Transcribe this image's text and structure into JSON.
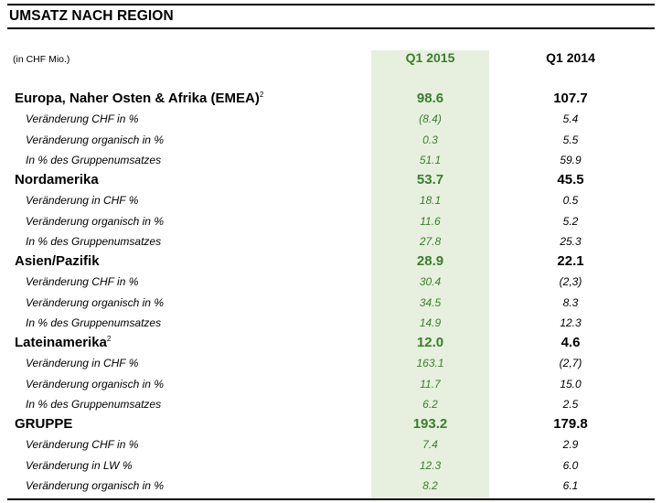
{
  "title": "UMSATZ NACH REGION",
  "unit_note": "(in CHF Mio.)",
  "columns": [
    "Q1 2015",
    "Q1 2014"
  ],
  "colors": {
    "highlight_column_bg": "#e7f0df",
    "highlight_text": "#3a7e2c"
  },
  "rows": [
    {
      "type": "main",
      "label": "Europa, Naher Osten & Afrika (EMEA)",
      "sup": "2",
      "q1_2015": "98.6",
      "q1_2014": "107.7"
    },
    {
      "type": "sub",
      "label": "Veränderung CHF in %",
      "q1_2015": "(8.4)",
      "q1_2014": "5.4"
    },
    {
      "type": "sub",
      "label": "Veränderung organisch in %",
      "q1_2015": "0.3",
      "q1_2014": "5.5"
    },
    {
      "type": "sub",
      "label": "In % des Gruppenumsatzes",
      "q1_2015": "51.1",
      "q1_2014": "59.9"
    },
    {
      "type": "main",
      "label": "Nordamerika",
      "sup": "",
      "q1_2015": "53.7",
      "q1_2014": "45.5"
    },
    {
      "type": "sub",
      "label": "Veränderung in CHF %",
      "q1_2015": "18.1",
      "q1_2014": "0.5"
    },
    {
      "type": "sub",
      "label": "Veränderung organisch in %",
      "q1_2015": "11.6",
      "q1_2014": "5.2"
    },
    {
      "type": "sub",
      "label": "In % des Gruppenumsatzes",
      "q1_2015": "27.8",
      "q1_2014": "25.3"
    },
    {
      "type": "main",
      "label": "Asien/Pazifik",
      "sup": "",
      "q1_2015": "28.9",
      "q1_2014": "22.1"
    },
    {
      "type": "sub",
      "label": "Veränderung CHF in %",
      "q1_2015": "30.4",
      "q1_2014": "(2,3)"
    },
    {
      "type": "sub",
      "label": "Veränderung organisch in %",
      "q1_2015": "34.5",
      "q1_2014": "8.3"
    },
    {
      "type": "sub",
      "label": "In % des Gruppenumsatzes",
      "q1_2015": "14.9",
      "q1_2014": "12.3"
    },
    {
      "type": "main",
      "label": "Lateinamerika",
      "sup": "2",
      "q1_2015": "12.0",
      "q1_2014": "4.6"
    },
    {
      "type": "sub",
      "label": "Veränderung in CHF %",
      "q1_2015": "163.1",
      "q1_2014": "(2,7)"
    },
    {
      "type": "sub",
      "label": "Veränderung organisch in %",
      "q1_2015": "11.7",
      "q1_2014": "15.0"
    },
    {
      "type": "sub",
      "label": "In % des Gruppenumsatzes",
      "q1_2015": "6.2",
      "q1_2014": "2.5"
    },
    {
      "type": "main",
      "label": "GRUPPE",
      "sup": "",
      "q1_2015": "193.2",
      "q1_2014": "179.8"
    },
    {
      "type": "sub",
      "label": "Veränderung CHF in %",
      "q1_2015": "7.4",
      "q1_2014": "2.9"
    },
    {
      "type": "sub",
      "label": "Veränderung in LW %",
      "q1_2015": "12.3",
      "q1_2014": "6.0"
    },
    {
      "type": "sub",
      "label": "Veränderung organisch in %",
      "q1_2015": "8.2",
      "q1_2014": "6.1"
    }
  ]
}
